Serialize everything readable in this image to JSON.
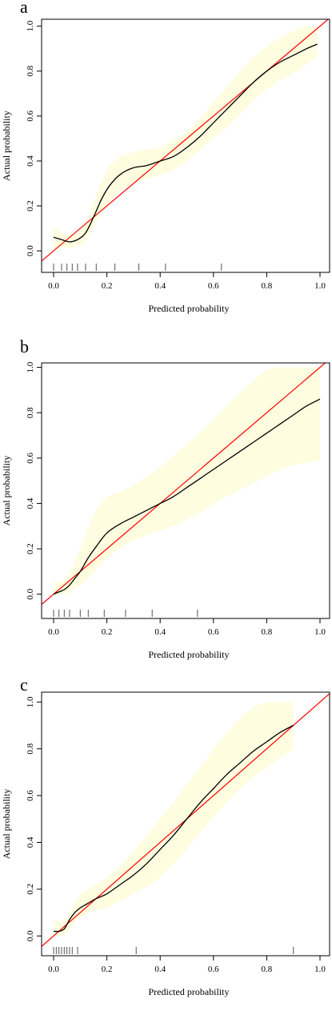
{
  "chart_data": [
    {
      "type": "line",
      "panel_label": "a",
      "xlabel": "Predicted probability",
      "ylabel": "Actual probability",
      "xlim": [
        0,
        1
      ],
      "ylim": [
        0,
        1
      ],
      "x_ticks": [
        "0.0",
        "0.2",
        "0.4",
        "0.6",
        "0.8",
        "1.0"
      ],
      "y_ticks": [
        "0.0",
        "0.2",
        "0.4",
        "0.6",
        "0.8",
        "1.0"
      ],
      "grid": false,
      "series": [
        {
          "kind": "calibration-curve",
          "color": "#000000",
          "x": [
            0.0,
            0.03,
            0.06,
            0.09,
            0.12,
            0.15,
            0.18,
            0.21,
            0.25,
            0.3,
            0.35,
            0.4,
            0.45,
            0.5,
            0.55,
            0.6,
            0.65,
            0.7,
            0.75,
            0.8,
            0.85,
            0.9,
            0.95,
            0.99
          ],
          "y": [
            0.06,
            0.05,
            0.04,
            0.05,
            0.08,
            0.15,
            0.23,
            0.29,
            0.34,
            0.37,
            0.38,
            0.4,
            0.42,
            0.46,
            0.51,
            0.57,
            0.63,
            0.69,
            0.75,
            0.8,
            0.84,
            0.87,
            0.9,
            0.92
          ]
        },
        {
          "kind": "confidence-band",
          "color": "#fffde0",
          "x": [
            0.0,
            0.03,
            0.06,
            0.09,
            0.12,
            0.15,
            0.18,
            0.21,
            0.25,
            0.3,
            0.35,
            0.4,
            0.45,
            0.5,
            0.55,
            0.6,
            0.65,
            0.7,
            0.75,
            0.8,
            0.85,
            0.9,
            0.95,
            0.99
          ],
          "upper": [
            0.11,
            0.08,
            0.07,
            0.08,
            0.13,
            0.21,
            0.31,
            0.38,
            0.42,
            0.44,
            0.45,
            0.46,
            0.49,
            0.53,
            0.59,
            0.66,
            0.73,
            0.8,
            0.86,
            0.91,
            0.95,
            0.98,
            1.0,
            1.0
          ],
          "lower": [
            0.0,
            0.02,
            0.01,
            0.02,
            0.04,
            0.1,
            0.17,
            0.22,
            0.27,
            0.3,
            0.32,
            0.34,
            0.36,
            0.4,
            0.45,
            0.5,
            0.55,
            0.61,
            0.67,
            0.72,
            0.76,
            0.79,
            0.83,
            0.86
          ]
        },
        {
          "kind": "ideal-line",
          "color": "#ff0000",
          "x": [
            0,
            1
          ],
          "y": [
            0,
            1
          ]
        }
      ],
      "rug": [
        0.0,
        0.03,
        0.05,
        0.07,
        0.09,
        0.12,
        0.16,
        0.23,
        0.32,
        0.42,
        0.63
      ]
    },
    {
      "type": "line",
      "panel_label": "b",
      "xlabel": "Predicted probability",
      "ylabel": "Actual probability",
      "xlim": [
        0,
        1
      ],
      "ylim": [
        0,
        1
      ],
      "x_ticks": [
        "0.0",
        "0.2",
        "0.4",
        "0.6",
        "0.8",
        "1.0"
      ],
      "y_ticks": [
        "0.0",
        "0.2",
        "0.4",
        "0.6",
        "0.8",
        "1.0"
      ],
      "grid": false,
      "series": [
        {
          "kind": "calibration-curve",
          "color": "#000000",
          "x": [
            0.0,
            0.02,
            0.04,
            0.06,
            0.08,
            0.1,
            0.13,
            0.16,
            0.2,
            0.25,
            0.3,
            0.35,
            0.4,
            0.45,
            0.5,
            0.55,
            0.6,
            0.65,
            0.7,
            0.75,
            0.8,
            0.85,
            0.9,
            0.95,
            1.0
          ],
          "y": [
            0.0,
            0.01,
            0.02,
            0.04,
            0.07,
            0.1,
            0.16,
            0.21,
            0.27,
            0.31,
            0.34,
            0.37,
            0.4,
            0.43,
            0.47,
            0.51,
            0.55,
            0.59,
            0.63,
            0.67,
            0.71,
            0.75,
            0.79,
            0.83,
            0.86
          ]
        },
        {
          "kind": "confidence-band",
          "color": "#fffde0",
          "x": [
            0.0,
            0.02,
            0.04,
            0.06,
            0.08,
            0.1,
            0.13,
            0.16,
            0.2,
            0.25,
            0.3,
            0.35,
            0.4,
            0.45,
            0.5,
            0.55,
            0.6,
            0.65,
            0.7,
            0.75,
            0.8,
            0.85,
            0.9,
            0.95,
            1.0
          ],
          "upper": [
            0.05,
            0.05,
            0.06,
            0.09,
            0.14,
            0.2,
            0.29,
            0.37,
            0.43,
            0.45,
            0.48,
            0.52,
            0.56,
            0.61,
            0.66,
            0.71,
            0.77,
            0.83,
            0.89,
            0.94,
            0.99,
            1.0,
            1.0,
            1.0,
            1.0
          ],
          "lower": [
            0.0,
            0.0,
            0.0,
            0.01,
            0.02,
            0.04,
            0.07,
            0.11,
            0.16,
            0.2,
            0.24,
            0.26,
            0.28,
            0.3,
            0.33,
            0.36,
            0.4,
            0.43,
            0.46,
            0.49,
            0.52,
            0.55,
            0.57,
            0.58,
            0.59
          ]
        },
        {
          "kind": "ideal-line",
          "color": "#ff0000",
          "x": [
            0,
            1
          ],
          "y": [
            0,
            1
          ]
        }
      ],
      "rug": [
        0.0,
        0.02,
        0.04,
        0.06,
        0.1,
        0.13,
        0.19,
        0.27,
        0.37,
        0.54
      ]
    },
    {
      "type": "line",
      "panel_label": "c",
      "xlabel": "Predicted probability",
      "ylabel": "Actual probability",
      "xlim": [
        0,
        1
      ],
      "ylim": [
        0,
        1
      ],
      "x_ticks": [
        "0.0",
        "0.2",
        "0.4",
        "0.6",
        "0.8",
        "1.0"
      ],
      "y_ticks": [
        "0.0",
        "0.2",
        "0.4",
        "0.6",
        "0.8",
        "1.0"
      ],
      "grid": false,
      "series": [
        {
          "kind": "calibration-curve",
          "color": "#000000",
          "x": [
            0.0,
            0.02,
            0.04,
            0.06,
            0.08,
            0.1,
            0.13,
            0.16,
            0.2,
            0.25,
            0.3,
            0.35,
            0.4,
            0.45,
            0.5,
            0.55,
            0.6,
            0.65,
            0.7,
            0.75,
            0.8,
            0.85,
            0.9
          ],
          "y": [
            0.02,
            0.02,
            0.03,
            0.07,
            0.1,
            0.12,
            0.14,
            0.16,
            0.18,
            0.22,
            0.26,
            0.31,
            0.37,
            0.43,
            0.5,
            0.57,
            0.63,
            0.69,
            0.74,
            0.79,
            0.83,
            0.87,
            0.9
          ]
        },
        {
          "kind": "confidence-band",
          "color": "#fffde0",
          "x": [
            0.0,
            0.02,
            0.04,
            0.06,
            0.08,
            0.1,
            0.13,
            0.16,
            0.2,
            0.25,
            0.3,
            0.35,
            0.4,
            0.45,
            0.5,
            0.55,
            0.6,
            0.65,
            0.7,
            0.75,
            0.8,
            0.85,
            0.9
          ],
          "upper": [
            0.07,
            0.06,
            0.07,
            0.1,
            0.14,
            0.18,
            0.2,
            0.22,
            0.25,
            0.3,
            0.36,
            0.43,
            0.5,
            0.57,
            0.65,
            0.72,
            0.8,
            0.87,
            0.93,
            0.98,
            1.0,
            1.0,
            1.0
          ],
          "lower": [
            0.0,
            0.0,
            0.0,
            0.03,
            0.06,
            0.08,
            0.1,
            0.11,
            0.12,
            0.15,
            0.18,
            0.21,
            0.25,
            0.31,
            0.37,
            0.44,
            0.51,
            0.57,
            0.63,
            0.68,
            0.72,
            0.76,
            0.8
          ]
        },
        {
          "kind": "ideal-line",
          "color": "#ff0000",
          "x": [
            0,
            1
          ],
          "y": [
            0,
            1
          ]
        }
      ],
      "rug": [
        0.0,
        0.01,
        0.02,
        0.03,
        0.04,
        0.05,
        0.06,
        0.07,
        0.09,
        0.31,
        0.9
      ]
    }
  ]
}
